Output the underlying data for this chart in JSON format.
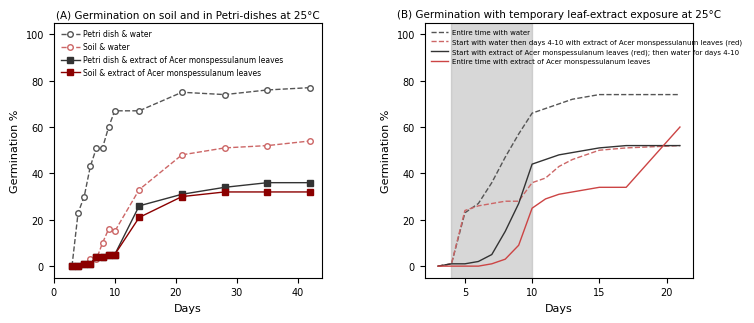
{
  "panel_A": {
    "title": "(A) Germination on soil and in Petri-dishes at 25°C",
    "xlabel": "Days",
    "ylabel": "Germination %",
    "ylim": [
      -5,
      105
    ],
    "xlim": [
      0,
      44
    ],
    "yticks": [
      0,
      20,
      40,
      60,
      80,
      100
    ],
    "xticks": [
      0,
      10,
      20,
      30,
      40
    ],
    "series": [
      {
        "label": "Petri dish & water",
        "color": "#555555",
        "linestyle": "dashed",
        "marker": "o",
        "markerfacecolor": "white",
        "markeredgecolor": "#555555",
        "x": [
          3,
          4,
          5,
          6,
          7,
          8,
          9,
          10,
          14,
          21,
          28,
          35,
          42
        ],
        "y": [
          0,
          23,
          30,
          43,
          51,
          51,
          60,
          67,
          67,
          75,
          74,
          76,
          77
        ]
      },
      {
        "label": "Soil & water",
        "color": "#cc6666",
        "linestyle": "dashed",
        "marker": "o",
        "markerfacecolor": "white",
        "markeredgecolor": "#cc6666",
        "x": [
          3,
          4,
          5,
          6,
          7,
          8,
          9,
          10,
          14,
          21,
          28,
          35,
          42
        ],
        "y": [
          0,
          0,
          1,
          3,
          3,
          10,
          16,
          15,
          33,
          48,
          51,
          52,
          54
        ]
      },
      {
        "label": "Petri dish & extract of Acer monspessulanum leaves",
        "color": "#333333",
        "linestyle": "solid",
        "marker": "s",
        "markerfacecolor": "#333333",
        "markeredgecolor": "#333333",
        "x": [
          3,
          4,
          5,
          6,
          7,
          8,
          9,
          10,
          14,
          21,
          28,
          35,
          42
        ],
        "y": [
          0,
          0,
          1,
          1,
          4,
          4,
          5,
          5,
          26,
          31,
          34,
          36,
          36
        ]
      },
      {
        "label": "Soil & extract of Acer monspessulanum leaves",
        "color": "#8b0000",
        "linestyle": "solid",
        "marker": "s",
        "markerfacecolor": "#8b0000",
        "markeredgecolor": "#8b0000",
        "x": [
          3,
          4,
          5,
          6,
          7,
          8,
          9,
          10,
          14,
          21,
          28,
          35,
          42
        ],
        "y": [
          0,
          0,
          1,
          1,
          4,
          4,
          5,
          5,
          21,
          30,
          32,
          32,
          32
        ]
      }
    ]
  },
  "panel_B": {
    "title": "(B) Germination with temporary leaf-extract exposure at 25°C",
    "xlabel": "Days",
    "ylabel": "Germination %",
    "ylim": [
      -5,
      105
    ],
    "xlim": [
      2,
      22
    ],
    "yticks": [
      0,
      20,
      40,
      60,
      80,
      100
    ],
    "xticks": [
      5,
      10,
      15,
      20
    ],
    "shaded_region": [
      4,
      10
    ],
    "series": [
      {
        "label": "Entire time with water",
        "color": "#555555",
        "linestyle": "dashed",
        "marker": "",
        "x": [
          3,
          4,
          5,
          6,
          7,
          8,
          9,
          10,
          11,
          12,
          13,
          14,
          15,
          17,
          21
        ],
        "y": [
          0,
          1,
          23,
          27,
          36,
          47,
          57,
          66,
          68,
          70,
          72,
          73,
          74,
          74,
          74
        ]
      },
      {
        "label": "Start with water then days 4-10 with extract of Acer monspessulanum leaves (red)",
        "color": "#cc6666",
        "linestyle": "dashed",
        "marker": "",
        "x": [
          3,
          4,
          5,
          6,
          7,
          8,
          9,
          10,
          11,
          12,
          13,
          14,
          15,
          17,
          21
        ],
        "y": [
          0,
          1,
          24,
          26,
          27,
          28,
          28,
          36,
          38,
          43,
          46,
          48,
          50,
          51,
          52
        ]
      },
      {
        "label": "Start with extract of Acer monspessulanum leaves (red); then water for days 4-10",
        "color": "#333333",
        "linestyle": "solid",
        "marker": "",
        "x": [
          3,
          4,
          5,
          6,
          7,
          8,
          9,
          10,
          11,
          12,
          13,
          14,
          15,
          17,
          21
        ],
        "y": [
          0,
          1,
          1,
          2,
          5,
          15,
          27,
          44,
          46,
          48,
          49,
          50,
          51,
          52,
          52
        ]
      },
      {
        "label": "Entire time with extract of Acer monspessulanum leaves",
        "color": "#cc4444",
        "linestyle": "solid",
        "marker": "",
        "x": [
          3,
          4,
          5,
          6,
          7,
          8,
          9,
          10,
          11,
          12,
          13,
          14,
          15,
          17,
          21
        ],
        "y": [
          0,
          0,
          0,
          0,
          1,
          3,
          9,
          25,
          29,
          31,
          32,
          33,
          34,
          34,
          60
        ]
      }
    ]
  }
}
